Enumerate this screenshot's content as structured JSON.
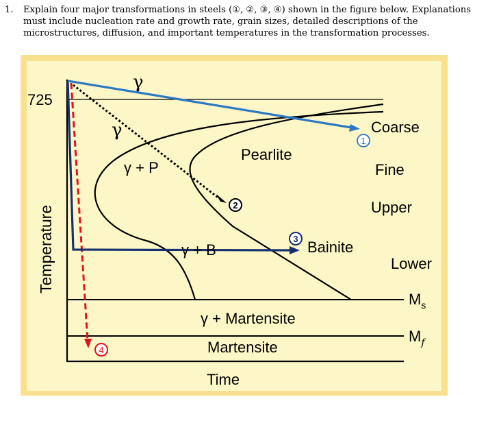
{
  "question": {
    "number": "1.",
    "text": "Explain four major transformations in steels (①, ②, ③, ④) shown in the figure below. Explanations must include nucleation rate and growth rate, grain sizes, detailed descriptions of the microstructures, diffusion, and important temperatures in the transformation processes."
  },
  "diagram": {
    "colors": {
      "background_outer": "#f8e08e",
      "background_inner": "#fdf7c8",
      "path1_blue": "#2d78c2",
      "path3_navy": "#16306e",
      "path4_red": "#e3121b",
      "path2_black": "#000000"
    },
    "labels": {
      "gamma_top": "γ",
      "gamma_left": "γ",
      "gamma_plus_p": "γ + P",
      "pearlite": "Pearlite",
      "coarse": "Coarse",
      "fine": "Fine",
      "upper": "Upper",
      "bainite": "Bainite",
      "lower": "Lower",
      "gamma_plus_b": "γ + B",
      "ms_main": "M",
      "ms_sub": "s",
      "mf_main": "M",
      "mf_sub": "f",
      "gamma_martensite": "γ + Martensite",
      "martensite": "Martensite",
      "temp_725": "725",
      "y_axis": "Temperature",
      "x_axis": "Time"
    },
    "markers": {
      "m1": "1",
      "m2": "2",
      "m3": "3",
      "m4": "4"
    }
  }
}
